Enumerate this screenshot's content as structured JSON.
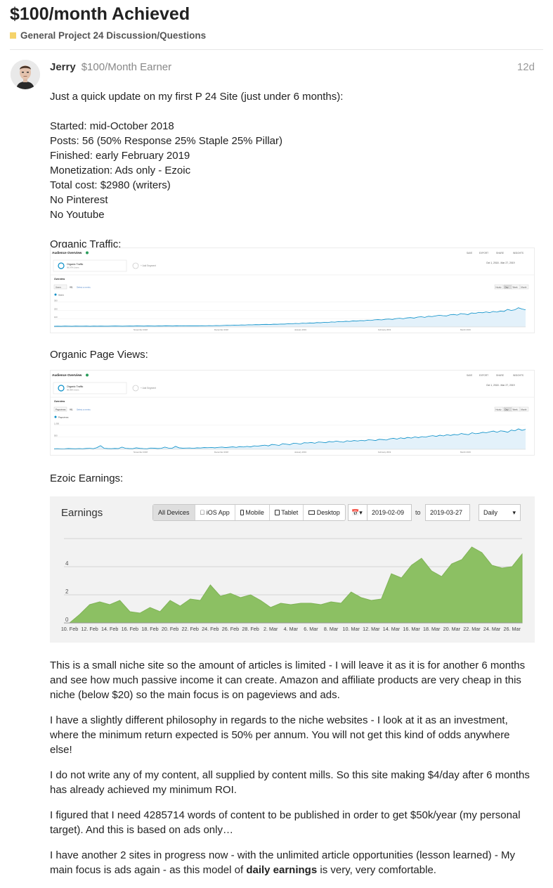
{
  "topic": {
    "title": "$100/month Achieved",
    "category": "General Project 24 Discussion/Questions",
    "category_color": "#f5d36a"
  },
  "post": {
    "username": "Jerry",
    "user_title": "$100/Month Earner",
    "date": "12d",
    "intro": "Just a quick update on my first P 24 Site (just under 6 months):",
    "stats": [
      "Started: mid-October 2018",
      "Posts: 56 (50% Response 25% Staple 25% Pillar)",
      "Finished: early February 2019",
      "Monetization: Ads only - Ezoic",
      "Total cost: $2980 (writers)",
      "No Pinterest",
      "No Youtube"
    ],
    "label_traffic": "Organic Traffic:",
    "label_pageviews": "Organic Page Views:",
    "label_earnings": "Ezoic Earnings:",
    "paragraphs": [
      "This is a small niche site so the amount of articles is limited - I will leave it as it is for another 6 months and see how much passive income it can create. Amazon and affiliate products are very cheap in this niche (below $20) so the main focus is on pageviews and ads.",
      "I have a slightly different philosophy in regards to the niche websites - I look at it as an investment, where the minimum return expected is 50% per annum. You will not get this kind of odds anywhere else!",
      "I do not write any of my content, all supplied by content mills. So this site making $4/day after 6 months has already achieved my minimum ROI.",
      "I figured that I need 4285714 words of content to be published in order to get $50k/year (my personal target). And this is based on ads only…"
    ],
    "last_paragraph": {
      "before": "I have another 2 sites in progress now - with the unlimited article opportunities (lesson learned) - My main focus is ads again - as this model of ",
      "bold": "daily earnings",
      "after": " is very, very comfortable."
    }
  },
  "ga_traffic": {
    "header": "Audience Overview",
    "actions": [
      "SAVE",
      "EXPORT",
      "SHARE",
      "INSIGHTS"
    ],
    "segment": "Organic Traffic",
    "segment_sub": "99.97% Users",
    "add_segment": "+ Add Segment",
    "date_range": "Oct 1, 2018 - Mar 27, 2019",
    "tab": "Overview",
    "metric": "Users",
    "vs": "VS.",
    "select_metric": "Select a metric",
    "granularity": [
      "Hourly",
      "Day",
      "Week",
      "Month"
    ],
    "legend": "Users",
    "y_ticks": [
      "300",
      "200",
      "100"
    ],
    "x_ticks": [
      "November 2018",
      "December 2018",
      "January 2019",
      "February 2019",
      "March 2019"
    ]
  },
  "ga_pageviews": {
    "header": "Audience Overview",
    "actions": [
      "SAVE",
      "EXPORT",
      "SHARE",
      "INSIGHTS"
    ],
    "segment": "Organic Traffic",
    "segment_sub": "99.99% Users",
    "add_segment": "+ Add Segment",
    "date_range": "Oct 1, 2018 - Mar 27, 2019",
    "tab": "Overview",
    "metric": "Pageviews",
    "vs": "VS.",
    "select_metric": "Select a metric",
    "granularity": [
      "Hourly",
      "Day",
      "Week",
      "Month"
    ],
    "legend": "Pageviews",
    "y_ticks": [
      "1,000",
      "500"
    ],
    "x_ticks": [
      "November 2018",
      "December 2018",
      "January 2019",
      "February 2019",
      "March 2019"
    ]
  },
  "ezoic": {
    "title": "Earnings",
    "device_tabs": [
      "All Devices",
      "iOS App",
      "Mobile",
      "Tablet",
      "Desktop"
    ],
    "active_tab": "All Devices",
    "date_from": "2019-02-09",
    "to_label": "to",
    "date_to": "2019-03-27",
    "interval": "Daily"
  },
  "chart_data": [
    {
      "type": "area",
      "title": "Earnings",
      "x": [
        "10. Feb",
        "11. Feb",
        "12. Feb",
        "13. Feb",
        "14. Feb",
        "15. Feb",
        "16. Feb",
        "17. Feb",
        "18. Feb",
        "19. Feb",
        "20. Feb",
        "21. Feb",
        "22. Feb",
        "23. Feb",
        "24. Feb",
        "25. Feb",
        "26. Feb",
        "27. Feb",
        "28. Feb",
        "1. Mar",
        "2. Mar",
        "3. Mar",
        "4. Mar",
        "5. Mar",
        "6. Mar",
        "7. Mar",
        "8. Mar",
        "9. Mar",
        "10. Mar",
        "11. Mar",
        "12. Mar",
        "13. Mar",
        "14. Mar",
        "15. Mar",
        "16. Mar",
        "17. Mar",
        "18. Mar",
        "19. Mar",
        "20. Mar",
        "21. Mar",
        "22. Mar",
        "23. Mar",
        "24. Mar",
        "25. Mar",
        "26. Mar",
        "27. Mar"
      ],
      "x_tick_labels": [
        "10. Feb",
        "12. Feb",
        "14. Feb",
        "16. Feb",
        "18. Feb",
        "20. Feb",
        "22. Feb",
        "24. Feb",
        "26. Feb",
        "28. Feb",
        "2. Mar",
        "4. Mar",
        "6. Mar",
        "8. Mar",
        "10. Mar",
        "12. Mar",
        "14. Mar",
        "16. Mar",
        "18. Mar",
        "20. Mar",
        "22. Mar",
        "24. Mar",
        "26. Mar"
      ],
      "series": [
        {
          "values": [
            0,
            0.6,
            1.3,
            1.5,
            1.3,
            1.6,
            0.8,
            0.7,
            1.1,
            0.8,
            1.6,
            1.2,
            1.7,
            1.6,
            2.7,
            1.9,
            2.1,
            1.8,
            2.0,
            1.6,
            1.1,
            1.4,
            1.3,
            1.4,
            1.4,
            1.3,
            1.5,
            1.4,
            2.2,
            1.8,
            1.6,
            1.7,
            3.5,
            3.2,
            4.1,
            4.6,
            3.7,
            3.3,
            4.2,
            4.5,
            5.4,
            5.0,
            4.1,
            3.9,
            4.0,
            4.9
          ]
        }
      ],
      "y_ticks": [
        "0",
        "2",
        "4"
      ],
      "ylim": [
        0,
        6
      ],
      "color": "#8cc063",
      "grid": true
    },
    {
      "type": "area",
      "title": "Users",
      "series": [
        {
          "values": [
            8,
            9,
            8,
            10,
            9,
            8,
            10,
            9,
            9,
            10,
            8,
            10,
            9,
            10,
            9,
            9,
            10,
            11,
            10,
            9,
            10,
            11,
            10,
            12,
            11,
            10,
            12,
            11,
            10,
            12,
            11,
            13,
            12,
            11,
            13,
            12,
            14,
            12,
            13,
            14,
            13,
            15,
            14,
            16,
            15,
            17,
            16,
            18,
            20,
            19,
            22,
            21,
            24,
            23,
            26,
            25,
            28,
            27,
            30,
            31,
            29,
            33,
            32,
            35,
            34,
            38,
            37,
            42,
            40,
            45,
            43,
            48,
            46,
            52,
            50,
            55,
            53,
            60,
            58,
            64,
            62,
            68,
            65,
            72,
            70,
            76,
            74,
            80,
            78,
            85,
            88,
            84,
            92,
            95,
            90,
            100,
            104,
            98,
            108,
            112,
            106,
            118,
            122,
            115,
            128,
            124,
            133,
            140,
            135,
            132,
            145,
            150,
            142,
            160,
            155,
            148,
            168,
            162,
            175,
            170,
            180,
            172,
            185,
            178,
            190,
            186,
            210,
            198,
            205,
            230,
            215,
            205
          ]
        }
      ],
      "y_ticks": [
        "300",
        "200",
        "100"
      ],
      "ylim": [
        0,
        320
      ],
      "color": "#058dc7"
    },
    {
      "type": "area",
      "title": "Pageviews",
      "series": [
        {
          "values": [
            20,
            25,
            18,
            22,
            30,
            24,
            20,
            28,
            22,
            35,
            40,
            25,
            70,
            150,
            40,
            30,
            25,
            35,
            28,
            90,
            40,
            30,
            25,
            60,
            38,
            28,
            22,
            50,
            45,
            30,
            40,
            90,
            50,
            40,
            120,
            60,
            45,
            50,
            55,
            40,
            60,
            55,
            70,
            65,
            75,
            60,
            80,
            90,
            70,
            85,
            100,
            80,
            110,
            95,
            120,
            100,
            140,
            130,
            150,
            170,
            140,
            200,
            180,
            160,
            230,
            210,
            190,
            250,
            240,
            210,
            270,
            260,
            280,
            250,
            300,
            290,
            270,
            320,
            300,
            340,
            310,
            290,
            350,
            330,
            360,
            340,
            370,
            350,
            390,
            380,
            360,
            410,
            400,
            380,
            430,
            450,
            420,
            470,
            440,
            490,
            460,
            510,
            480,
            520,
            500,
            540,
            560,
            530,
            580,
            550,
            600,
            570,
            610,
            590,
            650,
            620,
            600,
            680,
            640,
            660,
            700,
            680,
            720,
            750,
            700,
            760,
            740,
            700,
            790,
            760,
            840,
            780,
            820
          ]
        }
      ],
      "y_ticks": [
        "1,000",
        "500"
      ],
      "ylim": [
        0,
        1100
      ],
      "color": "#058dc7"
    }
  ]
}
